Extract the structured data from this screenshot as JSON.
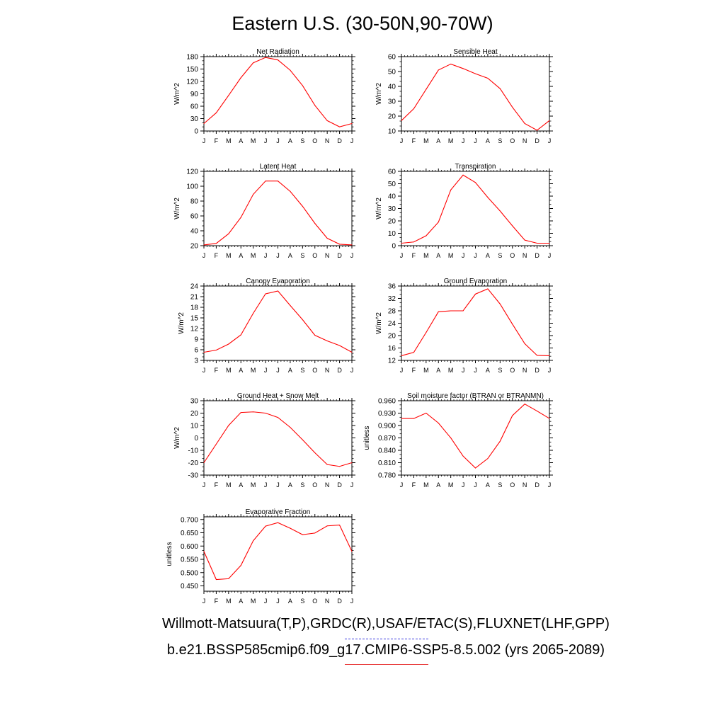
{
  "title": "Eastern U.S. (30-50N,90-70W)",
  "legend": {
    "observations": "Willmott-Matsuura(T,P),GRDC(R),USAF/ETAC(S),FLUXNET(LHF,GPP)",
    "observations_color": "#3a3adf",
    "model": "b.e21.BSSP585cmip6.f09_g17.CMIP6-SSP5-8.5.002 (yrs 2065-2089)",
    "model_color": "#ff0000"
  },
  "chart_data": [
    {
      "type": "line",
      "title": "Net Radiation",
      "ylabel": "W/m^2",
      "categories": [
        "J",
        "F",
        "M",
        "A",
        "M",
        "J",
        "J",
        "A",
        "S",
        "O",
        "N",
        "D",
        "J"
      ],
      "yticks": [
        "0",
        "30",
        "60",
        "90",
        "120",
        "150",
        "180"
      ],
      "ylim": [
        0,
        180
      ],
      "series": [
        {
          "color": "#ff0000",
          "values": [
            18,
            44,
            86,
            129,
            165,
            178,
            172,
            147,
            110,
            62,
            25,
            10,
            18
          ]
        }
      ]
    },
    {
      "type": "line",
      "title": "Sensible Heat",
      "ylabel": "W/m^2",
      "categories": [
        "J",
        "F",
        "M",
        "A",
        "M",
        "J",
        "J",
        "A",
        "S",
        "O",
        "N",
        "D",
        "J"
      ],
      "yticks": [
        "10",
        "20",
        "30",
        "40",
        "50",
        "60"
      ],
      "ylim": [
        10,
        60
      ],
      "series": [
        {
          "color": "#ff0000",
          "values": [
            17,
            25,
            38,
            51,
            55,
            52,
            48.5,
            45.5,
            38.5,
            26,
            15,
            10.5,
            17
          ]
        }
      ]
    },
    {
      "type": "line",
      "title": "Latent Heat",
      "ylabel": "W/m^2",
      "categories": [
        "J",
        "F",
        "M",
        "A",
        "M",
        "J",
        "J",
        "A",
        "S",
        "O",
        "N",
        "D",
        "J"
      ],
      "yticks": [
        "20",
        "40",
        "60",
        "80",
        "100",
        "120"
      ],
      "ylim": [
        20,
        120
      ],
      "series": [
        {
          "color": "#ff0000",
          "values": [
            21,
            23,
            36,
            58,
            89,
            107,
            107,
            93,
            73,
            50,
            30,
            22,
            21
          ]
        }
      ]
    },
    {
      "type": "line",
      "title": "Transpiration",
      "ylabel": "W/m^2",
      "categories": [
        "J",
        "F",
        "M",
        "A",
        "M",
        "J",
        "J",
        "A",
        "S",
        "O",
        "N",
        "D",
        "J"
      ],
      "yticks": [
        "0",
        "10",
        "20",
        "30",
        "40",
        "50",
        "60"
      ],
      "ylim": [
        0,
        60
      ],
      "series": [
        {
          "color": "#ff0000",
          "values": [
            2,
            3,
            8,
            19,
            45,
            57,
            51,
            39,
            28,
            16,
            4.5,
            2,
            2
          ]
        }
      ]
    },
    {
      "type": "line",
      "title": "Canopy Evaporation",
      "ylabel": "W/m^2",
      "categories": [
        "J",
        "F",
        "M",
        "A",
        "M",
        "J",
        "J",
        "A",
        "S",
        "O",
        "N",
        "D",
        "J"
      ],
      "yticks": [
        "3",
        "6",
        "9",
        "12",
        "15",
        "18",
        "21",
        "24"
      ],
      "ylim": [
        3,
        24
      ],
      "series": [
        {
          "color": "#ff0000",
          "values": [
            5.3,
            5.9,
            7.6,
            10.2,
            16.3,
            21.8,
            22.6,
            18.5,
            14.5,
            10.1,
            8.5,
            7.2,
            5.3
          ]
        }
      ]
    },
    {
      "type": "line",
      "title": "Ground Evaporation",
      "ylabel": "W/m^2",
      "categories": [
        "J",
        "F",
        "M",
        "A",
        "M",
        "J",
        "J",
        "A",
        "S",
        "O",
        "N",
        "D",
        "J"
      ],
      "yticks": [
        "12",
        "16",
        "20",
        "24",
        "28",
        "32",
        "36"
      ],
      "ylim": [
        12,
        36
      ],
      "series": [
        {
          "color": "#ff0000",
          "values": [
            13.5,
            14.6,
            21,
            27.7,
            28,
            28,
            33.4,
            35.1,
            30.2,
            23.7,
            17.4,
            13.6,
            13.5
          ]
        }
      ]
    },
    {
      "type": "line",
      "title": "Ground Heat + Snow Melt",
      "ylabel": "W/m^2",
      "categories": [
        "J",
        "F",
        "M",
        "A",
        "M",
        "J",
        "J",
        "A",
        "S",
        "O",
        "N",
        "D",
        "J"
      ],
      "yticks": [
        "-30",
        "-20",
        "-10",
        "0",
        "10",
        "20",
        "30"
      ],
      "ylim": [
        -30,
        30
      ],
      "series": [
        {
          "color": "#ff0000",
          "values": [
            -20,
            -5,
            10,
            20.5,
            21,
            20,
            16.5,
            8.5,
            -1.5,
            -12,
            -21.5,
            -23,
            -20
          ]
        }
      ]
    },
    {
      "type": "line",
      "title": "Soil moisture factor (BTRAN or BTRANMN)",
      "ylabel": "unitless",
      "categories": [
        "J",
        "F",
        "M",
        "A",
        "M",
        "J",
        "J",
        "A",
        "S",
        "O",
        "N",
        "D",
        "J"
      ],
      "yticks": [
        "0.780",
        "0.810",
        "0.840",
        "0.870",
        "0.900",
        "0.930",
        "0.960"
      ],
      "ylim": [
        0.78,
        0.96
      ],
      "series": [
        {
          "color": "#ff0000",
          "values": [
            0.917,
            0.917,
            0.93,
            0.906,
            0.87,
            0.826,
            0.797,
            0.82,
            0.862,
            0.924,
            0.952,
            0.935,
            0.917
          ]
        }
      ]
    },
    {
      "type": "line",
      "title": "Evaporative Fraction",
      "ylabel": "unitless",
      "categories": [
        "J",
        "F",
        "M",
        "A",
        "M",
        "J",
        "J",
        "A",
        "S",
        "O",
        "N",
        "D",
        "J"
      ],
      "yticks": [
        "0.450",
        "0.500",
        "0.550",
        "0.600",
        "0.650",
        "0.700"
      ],
      "ylim": [
        0.43,
        0.71
      ],
      "series": [
        {
          "color": "#ff0000",
          "values": [
            0.58,
            0.474,
            0.477,
            0.527,
            0.62,
            0.675,
            0.688,
            0.667,
            0.643,
            0.649,
            0.676,
            0.679,
            0.58
          ]
        }
      ]
    }
  ]
}
